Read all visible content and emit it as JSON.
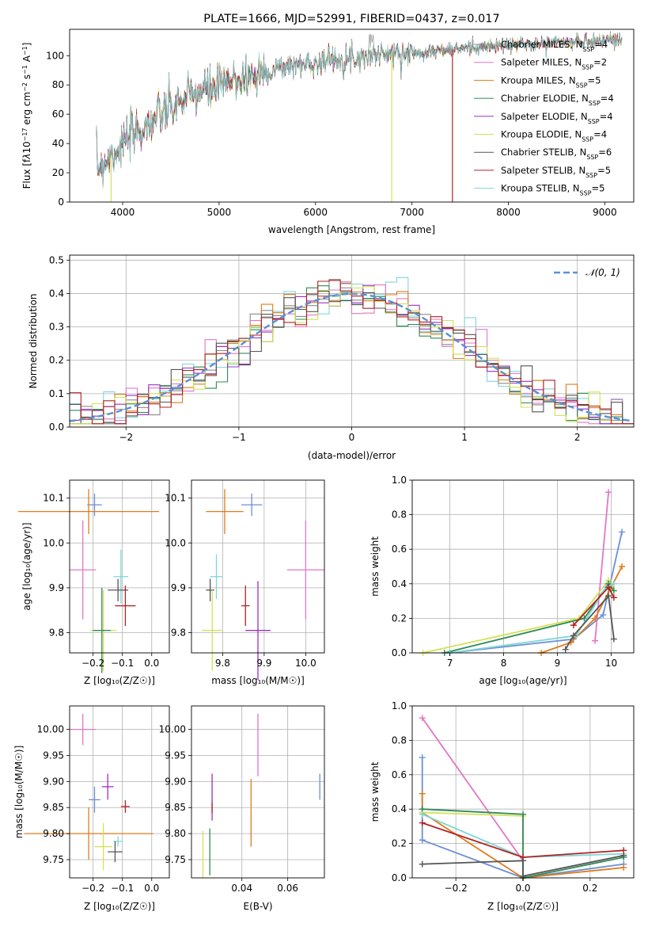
{
  "figure_title": "PLATE=1666, MJD=52991, FIBERID=0437, z=0.017",
  "model_colors": [
    "#8a8a8a",
    "#e377c2",
    "#e07b1a",
    "#2e8b57",
    "#9b30c0",
    "#d4e157",
    "#555555",
    "#b22222",
    "#7fd6d6"
  ],
  "chart_data": [
    {
      "type": "line",
      "title": "PLATE=1666, MJD=52991, FIBERID=0437, z=0.017",
      "xlabel": "wavelength [Angstrom, rest frame]",
      "ylabel": "Flux [fλ10⁻¹⁷ erg cm⁻² s⁻¹ A⁻¹]",
      "xlim": [
        3450,
        9300
      ],
      "ylim": [
        0,
        118
      ],
      "xticks": [
        4000,
        5000,
        6000,
        7000,
        8000,
        9000
      ],
      "yticks": [
        0,
        20,
        40,
        60,
        80,
        100
      ],
      "legend_position": "right",
      "grid": false,
      "x": [
        3750,
        3850,
        3950,
        4050,
        4150,
        4250,
        4350,
        4450,
        4550,
        4650,
        4750,
        4850,
        4950,
        5050,
        5150,
        5250,
        5350,
        5450,
        5550,
        5650,
        5750,
        5850,
        5950,
        6050,
        6150,
        6250,
        6350,
        6450,
        6550,
        6650,
        6750,
        6850,
        6950,
        7050,
        7150,
        7250,
        7350,
        7450,
        7550,
        7650,
        7750,
        7850,
        7950,
        8050,
        8150,
        8250,
        8350,
        8450,
        8550,
        8650,
        8750,
        8850,
        8950,
        9050,
        9150
      ],
      "flux": [
        24,
        30,
        36,
        42,
        48,
        52,
        57,
        62,
        66,
        70,
        74,
        76,
        78,
        80,
        83,
        85,
        86,
        88,
        90,
        92,
        93,
        94,
        95,
        96,
        97,
        98,
        98,
        99,
        100,
        101,
        101,
        101,
        102,
        102,
        103,
        103,
        104,
        104,
        105,
        106,
        106,
        106,
        107,
        107,
        108,
        108,
        108,
        109,
        109,
        109,
        110,
        110,
        110,
        111,
        111
      ],
      "series": [
        {
          "name": "Chabrier MILES, N_SSP=4",
          "name_html": "Chabrier MILES, N<sub>SSP</sub>=4"
        },
        {
          "name": "Salpeter MILES, N_SSP=2",
          "name_html": "Salpeter MILES, N<sub>SSP</sub>=2"
        },
        {
          "name": "Kroupa MILES, N_SSP=5",
          "name_html": "Kroupa MILES, N<sub>SSP</sub>=5"
        },
        {
          "name": "Chabrier ELODIE, N_SSP=4",
          "name_html": "Chabrier ELODIE, N<sub>SSP</sub>=4"
        },
        {
          "name": "Salpeter ELODIE, N_SSP=4",
          "name_html": "Salpeter ELODIE, N<sub>SSP</sub>=4"
        },
        {
          "name": "Kroupa ELODIE, N_SSP=4",
          "name_html": "Kroupa ELODIE, N<sub>SSP</sub>=4"
        },
        {
          "name": "Chabrier STELIB, N_SSP=6",
          "name_html": "Chabrier STELIB, N<sub>SSP</sub>=6"
        },
        {
          "name": "Salpeter STELIB, N_SSP=5",
          "name_html": "Salpeter STELIB, N<sub>SSP</sub>=5"
        },
        {
          "name": "Kroupa STELIB, N_SSP=5",
          "name_html": "Kroupa STELIB, N<sub>SSP</sub>=5"
        }
      ],
      "drop_lines": [
        {
          "x": 6790,
          "series_index": 5
        },
        {
          "x": 7420,
          "series_index": 7
        },
        {
          "x": 3880,
          "series_index": 5
        }
      ]
    },
    {
      "type": "histogram",
      "xlabel": "(data-model)/error",
      "ylabel": "Normed distribution",
      "xlim": [
        -2.5,
        2.5
      ],
      "ylim": [
        0,
        0.515
      ],
      "xticks": [
        -2,
        -1,
        0,
        1,
        2
      ],
      "yticks": [
        0.0,
        0.1,
        0.2,
        0.3,
        0.4,
        0.5
      ],
      "grid": true,
      "bin_width": 0.1,
      "reference_curve": {
        "name": "𝒩(0, 1)",
        "color": "#5b8fd6"
      },
      "legend_position": "upper right"
    },
    {
      "type": "errorbar",
      "xlabel": "Z [log₁₀(Z/Z☉)]",
      "ylabel": "age  [log₁₀(age/yr)]",
      "xlim": [
        -0.28,
        0.06
      ],
      "ylim": [
        9.755,
        10.14
      ],
      "xticks": [
        -0.2,
        -0.1,
        0.0
      ],
      "yticks": [
        9.8,
        9.9,
        10.0,
        10.1
      ],
      "grid": true,
      "points": [
        {
          "x": -0.195,
          "y": 10.085,
          "xerr": 0.025,
          "yerr": 0.025,
          "color": "#6b8fd6"
        },
        {
          "x": -0.215,
          "y": 10.07,
          "xerr": 0.24,
          "yerr": 0.05,
          "color": "#e07b1a"
        },
        {
          "x": -0.235,
          "y": 9.94,
          "xerr": 0.045,
          "yerr": 0.11,
          "color": "#e377c2"
        },
        {
          "x": -0.105,
          "y": 9.925,
          "xerr": 0.025,
          "yerr": 0.06,
          "color": "#7fd6d6"
        },
        {
          "x": -0.115,
          "y": 9.895,
          "xerr": 0.035,
          "yerr": 0.025,
          "color": "#555555"
        },
        {
          "x": -0.09,
          "y": 9.86,
          "xerr": 0.035,
          "yerr": 0.045,
          "color": "#b22222"
        },
        {
          "x": -0.165,
          "y": 9.805,
          "xerr": 0.045,
          "yerr": 0.09,
          "color": "#d4e157"
        },
        {
          "x": -0.17,
          "y": 9.805,
          "xerr": 0.03,
          "yerr": 0.095,
          "color": "#2e8b57"
        }
      ]
    },
    {
      "type": "errorbar",
      "xlabel": "mass [log₁₀(M/M☉)]",
      "ylabel": "",
      "xlim": [
        9.725,
        10.045
      ],
      "ylim": [
        9.755,
        10.14
      ],
      "xticks": [
        9.8,
        9.9,
        10.0
      ],
      "yticks": [
        9.8,
        9.9,
        10.0,
        10.1
      ],
      "grid": true,
      "points": [
        {
          "x": 9.87,
          "y": 10.085,
          "xerr": 0.025,
          "yerr": 0.025,
          "color": "#6b8fd6"
        },
        {
          "x": 9.805,
          "y": 10.07,
          "xerr": 0.045,
          "yerr": 0.05,
          "color": "#e07b1a"
        },
        {
          "x": 10.0,
          "y": 9.94,
          "xerr": 0.045,
          "yerr": 0.11,
          "color": "#e377c2"
        },
        {
          "x": 9.785,
          "y": 9.925,
          "xerr": 0.015,
          "yerr": 0.05,
          "color": "#7fd6d6"
        },
        {
          "x": 9.77,
          "y": 9.895,
          "xerr": 0.01,
          "yerr": 0.025,
          "color": "#555555"
        },
        {
          "x": 9.855,
          "y": 9.86,
          "xerr": 0.01,
          "yerr": 0.045,
          "color": "#b22222"
        },
        {
          "x": 9.775,
          "y": 9.805,
          "xerr": 0.025,
          "yerr": 0.09,
          "color": "#d4e157"
        },
        {
          "x": 9.885,
          "y": 9.805,
          "xerr": 0.03,
          "yerr": 0.11,
          "color": "#9b30c0"
        }
      ]
    },
    {
      "type": "line",
      "xlabel": "age  [log₁₀(age/yr)]",
      "ylabel": "mass weight",
      "xlim": [
        6.3,
        10.42
      ],
      "ylim": [
        0,
        1.0
      ],
      "xticks": [
        7,
        8,
        9,
        10
      ],
      "yticks": [
        0.0,
        0.2,
        0.4,
        0.6,
        0.8,
        1.0
      ],
      "grid": true,
      "series": [
        {
          "color": "#e377c2",
          "x": [
            9.7,
            9.95
          ],
          "y": [
            0.07,
            0.93
          ]
        },
        {
          "color": "#6b8fd6",
          "x": [
            7.0,
            9.3,
            9.85,
            10.2
          ],
          "y": [
            0.0,
            0.08,
            0.22,
            0.7
          ]
        },
        {
          "color": "#e07b1a",
          "x": [
            8.7,
            9.25,
            9.7,
            10.0,
            10.2
          ],
          "y": [
            0.0,
            0.06,
            0.2,
            0.38,
            0.5
          ]
        },
        {
          "color": "#d4e157",
          "x": [
            6.5,
            9.4,
            9.95,
            10.05
          ],
          "y": [
            0.0,
            0.2,
            0.42,
            0.36
          ]
        },
        {
          "color": "#2e8b57",
          "x": [
            6.9,
            9.5,
            9.95,
            10.05
          ],
          "y": [
            0.0,
            0.2,
            0.4,
            0.36
          ]
        },
        {
          "color": "#7fd6d6",
          "x": [
            7.0,
            9.35,
            9.9,
            10.05
          ],
          "y": [
            0.0,
            0.1,
            0.38,
            0.4
          ]
        },
        {
          "color": "#555555",
          "x": [
            9.15,
            9.3,
            9.95,
            10.05
          ],
          "y": [
            0.02,
            0.1,
            0.33,
            0.08
          ]
        },
        {
          "color": "#b22222",
          "x": [
            9.3,
            9.95,
            10.05
          ],
          "y": [
            0.16,
            0.38,
            0.32
          ]
        }
      ]
    },
    {
      "type": "errorbar",
      "xlabel": "Z [log₁₀(Z/Z☉)]",
      "ylabel": "mass [log₁₀(M/M☉)]",
      "xlim": [
        -0.28,
        0.06
      ],
      "ylim": [
        9.715,
        10.045
      ],
      "xticks": [
        -0.2,
        -0.1,
        0.0
      ],
      "yticks": [
        9.75,
        9.8,
        9.85,
        9.9,
        9.95,
        10.0
      ],
      "grid": true,
      "points": [
        {
          "x": -0.235,
          "y": 10.0,
          "xerr": 0.045,
          "yerr": 0.03,
          "color": "#e377c2"
        },
        {
          "x": -0.195,
          "y": 9.865,
          "xerr": 0.02,
          "yerr": 0.025,
          "color": "#6b8fd6"
        },
        {
          "x": -0.15,
          "y": 9.89,
          "xerr": 0.02,
          "yerr": 0.025,
          "color": "#9b30c0"
        },
        {
          "x": -0.09,
          "y": 9.852,
          "xerr": 0.015,
          "yerr": 0.012,
          "color": "#b22222"
        },
        {
          "x": -0.215,
          "y": 9.8,
          "xerr": 0.22,
          "yerr": 0.05,
          "color": "#e07b1a"
        },
        {
          "x": -0.115,
          "y": 9.785,
          "xerr": 0.015,
          "yerr": 0.01,
          "color": "#7fd6d6"
        },
        {
          "x": -0.165,
          "y": 9.775,
          "xerr": 0.03,
          "yerr": 0.045,
          "color": "#d4e157"
        },
        {
          "x": -0.125,
          "y": 9.765,
          "xerr": 0.025,
          "yerr": 0.02,
          "color": "#555555"
        }
      ]
    },
    {
      "type": "errorbar",
      "xlabel": "E(B-V)",
      "ylabel": "",
      "xlim": [
        0.018,
        0.076
      ],
      "ylim": [
        9.715,
        10.045
      ],
      "xticks": [
        0.04,
        0.06
      ],
      "yticks": [
        9.75,
        9.8,
        9.85,
        9.9,
        9.95,
        10.0
      ],
      "grid": true,
      "points": [
        {
          "x": 0.047,
          "y": 9.97,
          "xerr": 0,
          "yerr": 0.06,
          "color": "#e377c2"
        },
        {
          "x": 0.074,
          "y": 9.89,
          "xerr": 0,
          "yerr": 0.025,
          "color": "#6b8fd6"
        },
        {
          "x": 0.027,
          "y": 9.87,
          "xerr": 0,
          "yerr": 0.045,
          "color": "#9b30c0"
        },
        {
          "x": 0.027,
          "y": 9.85,
          "xerr": 0,
          "yerr": 0.01,
          "color": "#b22222"
        },
        {
          "x": 0.044,
          "y": 9.84,
          "xerr": 0,
          "yerr": 0.065,
          "color": "#e07b1a"
        },
        {
          "x": 0.026,
          "y": 9.765,
          "xerr": 0,
          "yerr": 0.045,
          "color": "#2e8b57"
        },
        {
          "x": 0.023,
          "y": 9.76,
          "xerr": 0,
          "yerr": 0.045,
          "color": "#d4e157"
        }
      ]
    },
    {
      "type": "line",
      "xlabel": "Z [log₁₀(Z/Z☉)]",
      "ylabel": "mass weight",
      "xlim": [
        -0.33,
        0.33
      ],
      "ylim": [
        0,
        1.0
      ],
      "xticks": [
        -0.2,
        0.0,
        0.2
      ],
      "yticks": [
        0.0,
        0.2,
        0.4,
        0.6,
        0.8,
        1.0
      ],
      "grid": true,
      "series": [
        {
          "color": "#e377c2",
          "x": [
            -0.3,
            0.0,
            0.0
          ],
          "y": [
            0.93,
            0.1,
            0.1
          ]
        },
        {
          "color": "#6b8fd6",
          "x": [
            -0.3,
            -0.3,
            0.0,
            0.3
          ],
          "y": [
            0.7,
            0.22,
            0.0,
            0.08
          ]
        },
        {
          "color": "#e07b1a",
          "x": [
            -0.3,
            -0.3,
            0.0,
            0.3
          ],
          "y": [
            0.49,
            0.38,
            0.0,
            0.06
          ]
        },
        {
          "color": "#d4e157",
          "x": [
            -0.3,
            0.0,
            0.0
          ],
          "y": [
            0.38,
            0.36,
            0.0
          ]
        },
        {
          "color": "#2e8b57",
          "x": [
            -0.3,
            0.0,
            0.0,
            0.3
          ],
          "y": [
            0.4,
            0.37,
            0.0,
            0.12
          ]
        },
        {
          "color": "#7fd6d6",
          "x": [
            -0.3,
            0.0,
            0.3
          ],
          "y": [
            0.37,
            0.12,
            0.14
          ]
        },
        {
          "color": "#555555",
          "x": [
            -0.3,
            0.0,
            0.0,
            0.3
          ],
          "y": [
            0.08,
            0.1,
            0.01,
            0.13
          ]
        },
        {
          "color": "#b22222",
          "x": [
            -0.3,
            0.0,
            0.3
          ],
          "y": [
            0.32,
            0.12,
            0.16
          ]
        }
      ]
    }
  ]
}
